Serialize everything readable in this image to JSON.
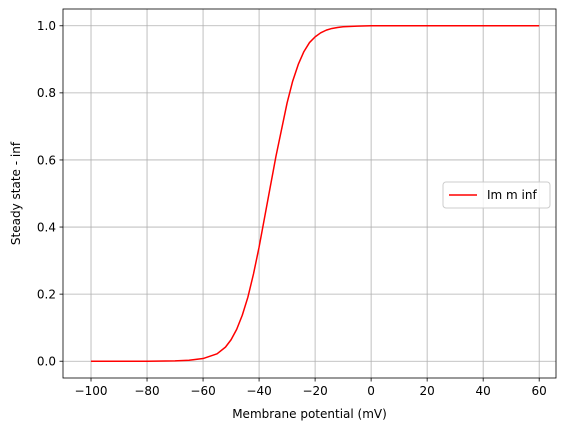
{
  "chart_data": {
    "type": "line",
    "xlabel": "Membrane potential (mV)",
    "ylabel": "Steady state - inf",
    "xlim": [
      -110,
      66
    ],
    "ylim": [
      -0.05,
      1.05
    ],
    "x_ticks": [
      -100,
      -80,
      -60,
      -40,
      -20,
      0,
      20,
      40,
      60
    ],
    "y_ticks": [
      0.0,
      0.2,
      0.4,
      0.6,
      0.8,
      1.0
    ],
    "x_tick_labels": [
      "−100",
      "−80",
      "−60",
      "−40",
      "−20",
      "0",
      "20",
      "40",
      "60"
    ],
    "y_tick_labels": [
      "0.0",
      "0.2",
      "0.4",
      "0.6",
      "0.8",
      "1.0"
    ],
    "grid": true,
    "legend_position": "right",
    "series": [
      {
        "name": "Im m inf",
        "color": "#ff0000",
        "x": [
          -100,
          -80,
          -70,
          -65,
          -60,
          -55,
          -52,
          -50,
          -48,
          -46,
          -44,
          -42,
          -40,
          -38,
          -36,
          -35,
          -34,
          -32,
          -30,
          -28,
          -26,
          -24,
          -22,
          -20,
          -18,
          -16,
          -14,
          -12,
          -10,
          -5,
          0,
          10,
          20,
          40,
          60
        ],
        "y": [
          0.0,
          0.0,
          0.001,
          0.003,
          0.008,
          0.022,
          0.042,
          0.064,
          0.095,
          0.137,
          0.191,
          0.26,
          0.34,
          0.43,
          0.52,
          0.565,
          0.61,
          0.69,
          0.77,
          0.835,
          0.885,
          0.923,
          0.95,
          0.967,
          0.979,
          0.987,
          0.992,
          0.995,
          0.997,
          0.999,
          1.0,
          1.0,
          1.0,
          1.0,
          1.0
        ]
      }
    ]
  }
}
